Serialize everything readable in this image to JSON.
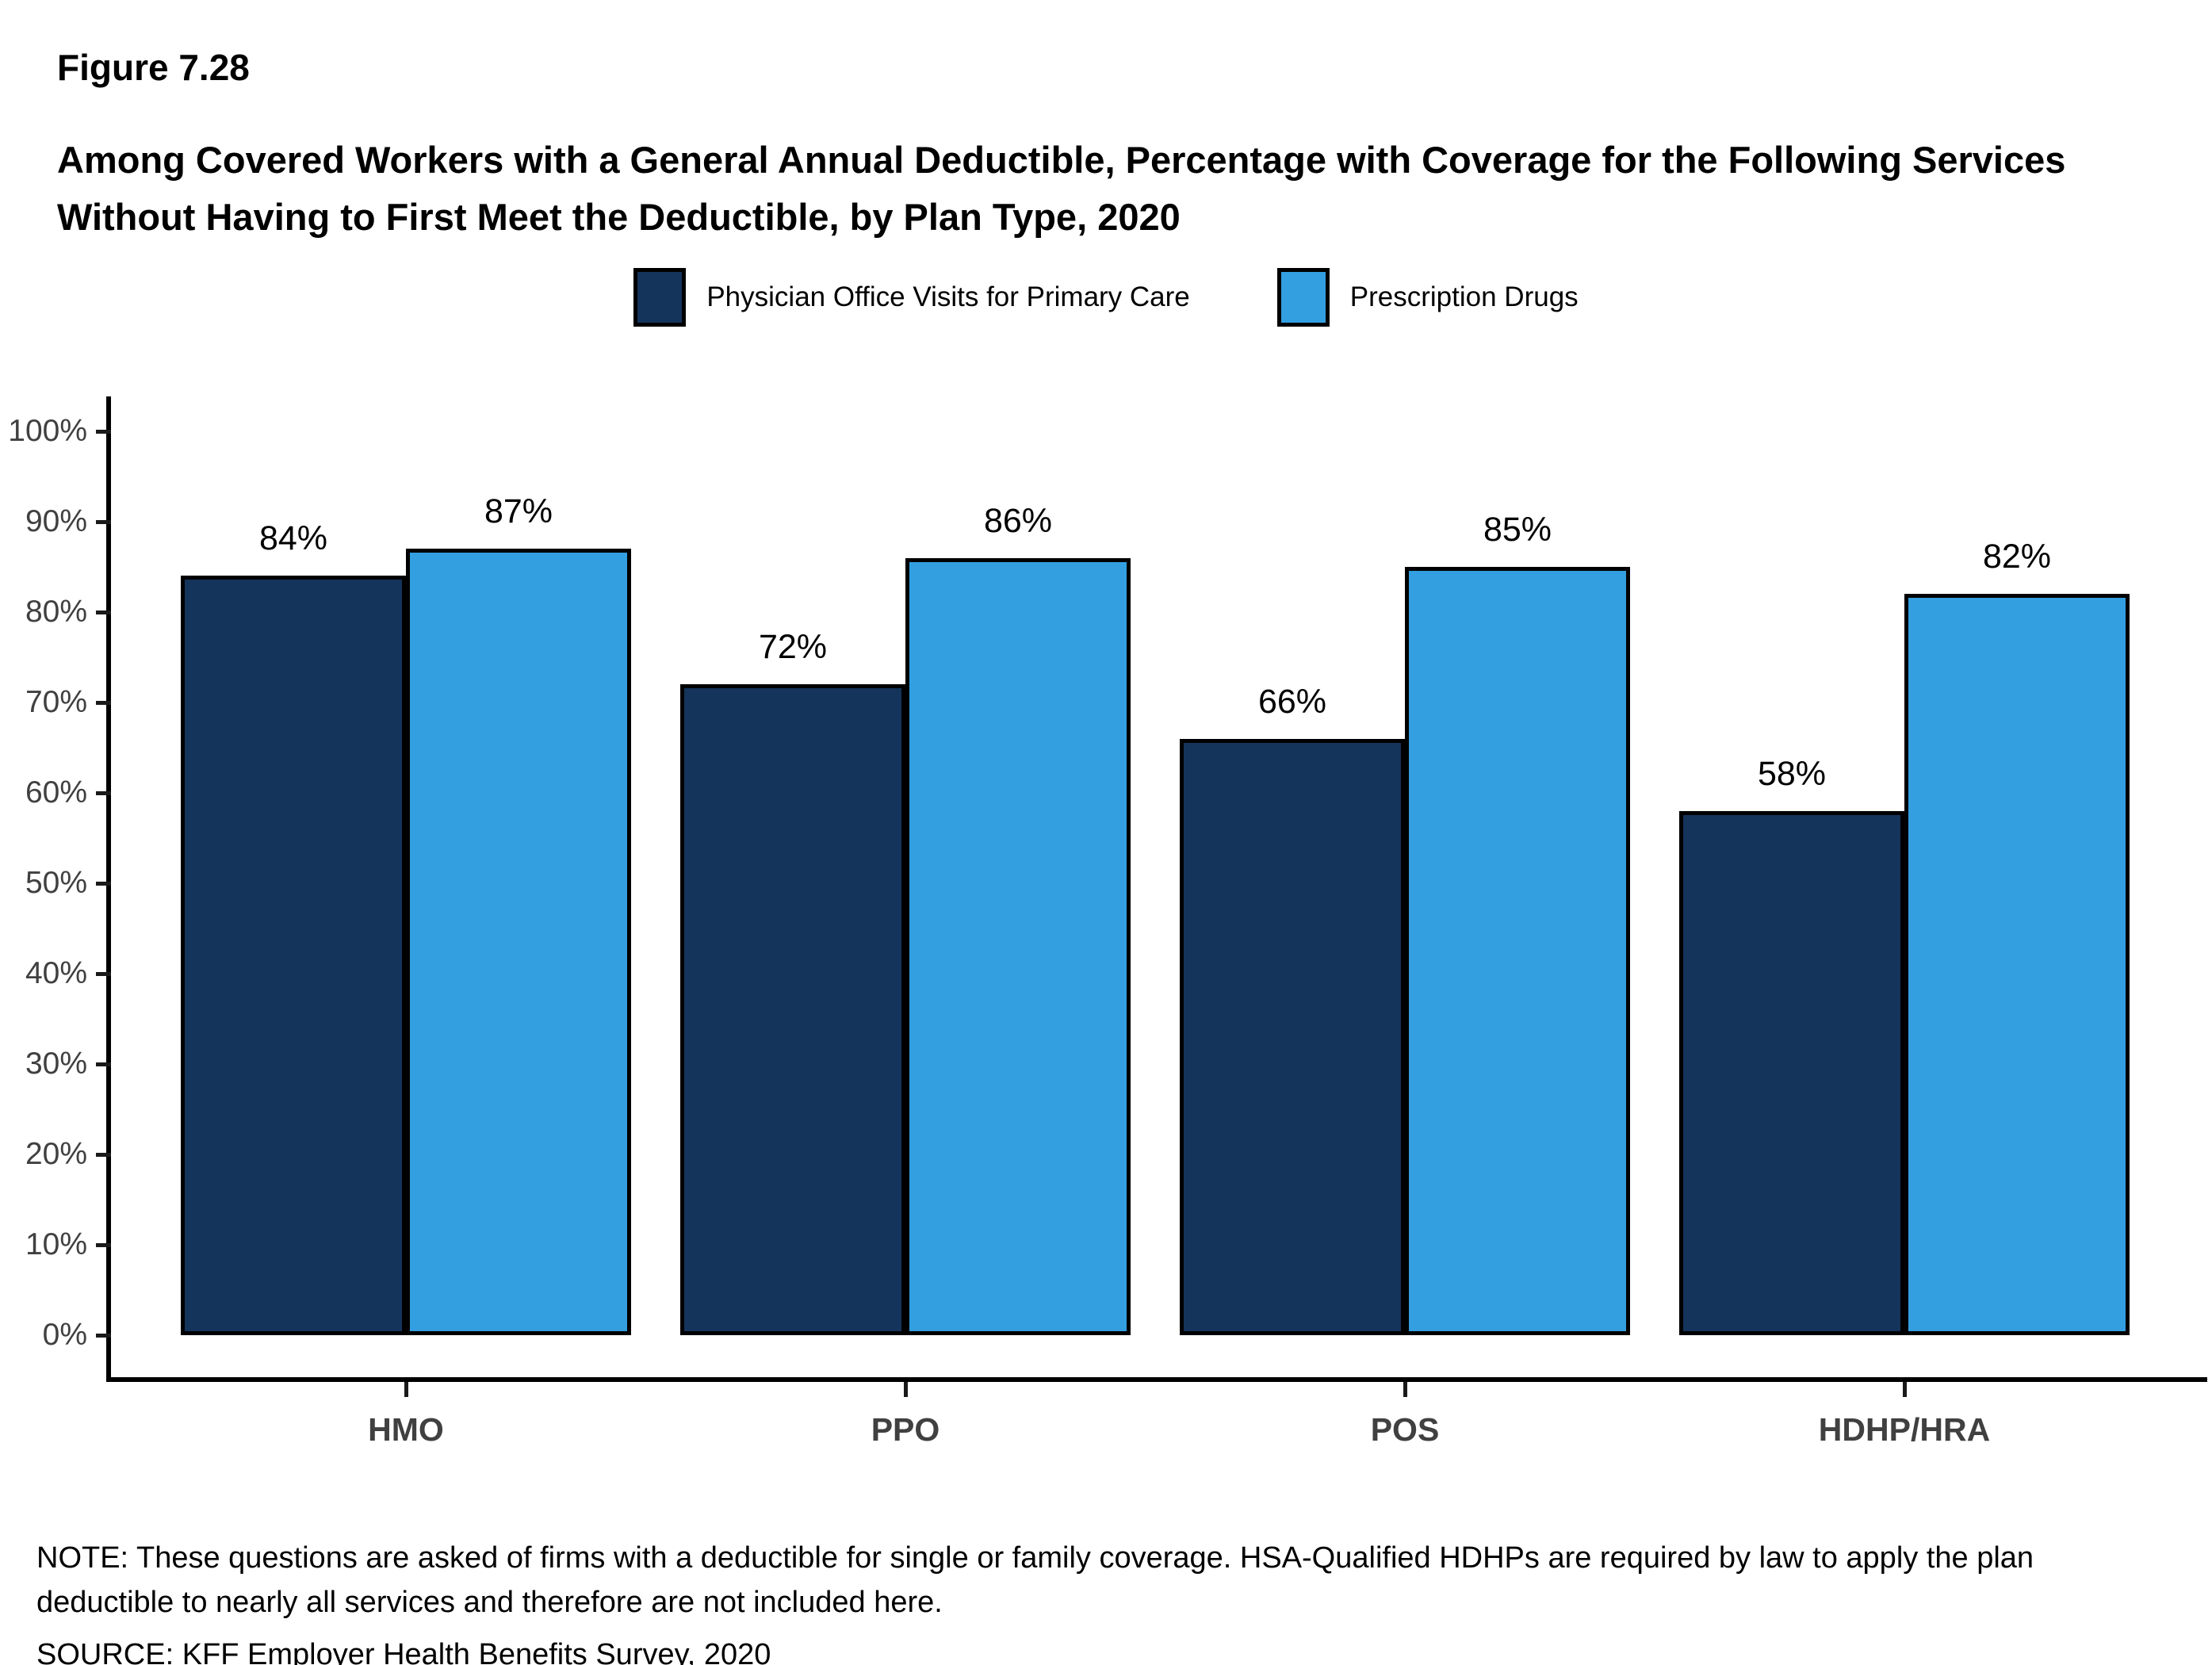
{
  "figure": {
    "label": "Figure 7.28",
    "title": "Among Covered Workers with a General Annual Deductible, Percentage with Coverage for the Following Services Without Having to First Meet the Deductible, by Plan Type, 2020"
  },
  "chart_data": {
    "type": "bar",
    "categories": [
      "HMO",
      "PPO",
      "POS",
      "HDHP/HRA"
    ],
    "series": [
      {
        "name": "Physician Office Visits for Primary Care",
        "color": "#14345B",
        "values": [
          84,
          72,
          66,
          58
        ]
      },
      {
        "name": "Prescription Drugs",
        "color": "#339FE0",
        "values": [
          87,
          86,
          85,
          82
        ]
      }
    ],
    "title": "Among Covered Workers with a General Annual Deductible, Percentage with Coverage for the Following Services Without Having to First Meet the Deductible, by Plan Type, 2020",
    "xlabel": "",
    "ylabel": "",
    "ylim": [
      0,
      100
    ],
    "ytick_step": 10,
    "ytick_suffix": "%",
    "value_suffix": "%",
    "grid": false,
    "legend_position": "top",
    "bar_labels_shown": true
  },
  "notes": {
    "note": "NOTE: These questions are asked of firms with a deductible for single or family coverage. HSA-Qualified HDHPs are required by law to apply the plan deductible to nearly all services and therefore are not included here.",
    "source": "SOURCE: KFF Employer Health Benefits Survey, 2020"
  },
  "colors": {
    "series_1": "#14345B",
    "series_2": "#339FE0",
    "axis": "#000000",
    "tick_label": "#404040",
    "background": "#FFFFFF"
  }
}
